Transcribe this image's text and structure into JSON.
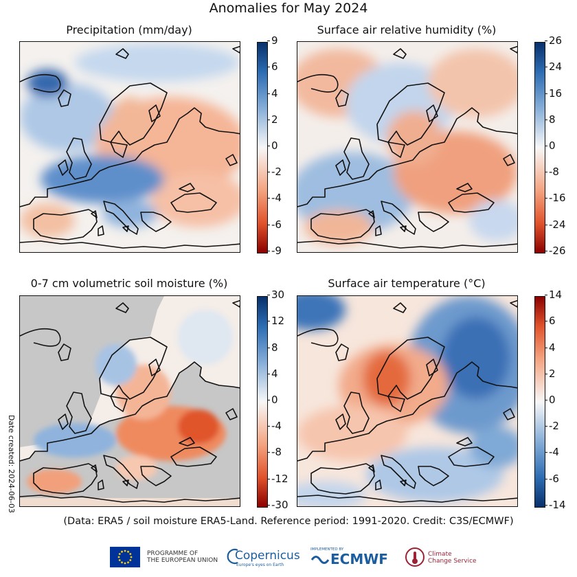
{
  "title": "Anomalies for May 2024",
  "panels": [
    {
      "title": "Precipitation (mm/day)",
      "ticks": [
        "9",
        "6",
        "4",
        "2",
        "0",
        "-2",
        "-4",
        "-6",
        "-9"
      ]
    },
    {
      "title": "Surface air relative humidity (%)",
      "ticks": [
        "26",
        "24",
        "16",
        "8",
        "0",
        "-8",
        "-16",
        "-24",
        "-26"
      ]
    },
    {
      "title": "0-7 cm volumetric soil moisture (%)",
      "ticks": [
        "30",
        "12",
        "8",
        "4",
        "0",
        "-4",
        "-8",
        "-12",
        "-30"
      ]
    },
    {
      "title": "Surface air temperature (°C)",
      "ticks": [
        "14",
        "6",
        "4",
        "2",
        "0",
        "-2",
        "-4",
        "-6",
        "-14"
      ]
    }
  ],
  "date_created": "Date created: 2024-06-03",
  "footer_note": "(Data: ERA5 / soil moisture ERA5-Land.  Reference period: 1991-2020.  Credit: C3S/ECMWF)",
  "logos": {
    "eu_line1": "PROGRAMME OF",
    "eu_line2": "THE EUROPEAN UNION",
    "copernicus": "Copernicus",
    "copernicus_tag": "Europe's eyes on Earth",
    "ecmwf_tag": "IMPLEMENTED BY",
    "ecmwf": "ECMWF",
    "climate_line1": "Climate",
    "climate_line2": "Change Service"
  },
  "colors": {
    "blue_dark": "#08306b",
    "blue": "#2c6cb3",
    "white": "#f7f7f7",
    "orange": "#ef7d4a",
    "red_dark": "#8b0000",
    "soil_mask": "#c7c7c7",
    "eu_blue": "#003399",
    "ecmwf_blue": "#1b5d9e",
    "climate_red": "#9b2335"
  }
}
